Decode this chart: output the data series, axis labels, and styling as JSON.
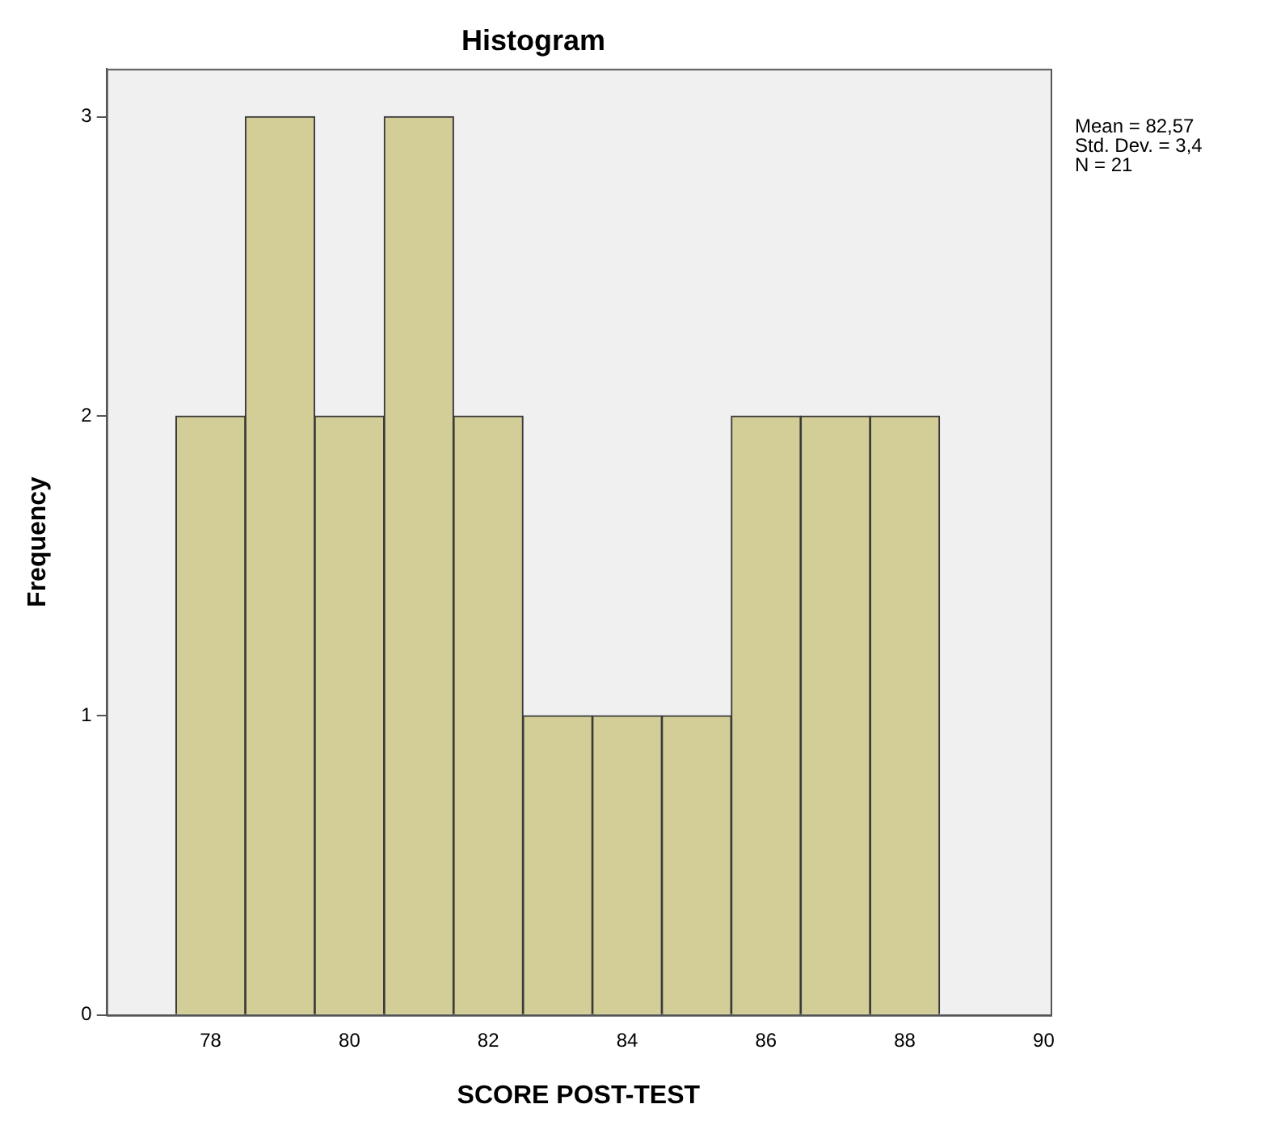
{
  "chart_data": {
    "type": "histogram",
    "title": "Histogram",
    "xlabel": "SCORE POST-TEST",
    "ylabel": "Frequency",
    "bins": [
      77.5,
      78.5,
      79.5,
      80.5,
      81.5,
      82.5,
      83.5,
      84.5,
      85.5,
      86.5,
      87.5,
      88.5
    ],
    "values": [
      2,
      3,
      2,
      3,
      2,
      1,
      1,
      1,
      2,
      2,
      2
    ],
    "color": "#d3ce97",
    "xlim": [
      76.5,
      90.1
    ],
    "xticks": [
      78,
      80,
      82,
      84,
      86,
      88,
      90
    ],
    "ylim": [
      0,
      3.16
    ],
    "yticks": [
      0,
      1,
      2,
      3
    ],
    "annotations": [
      "Mean = 82,57",
      "Std. Dev. = 3,4",
      "N = 21"
    ]
  }
}
